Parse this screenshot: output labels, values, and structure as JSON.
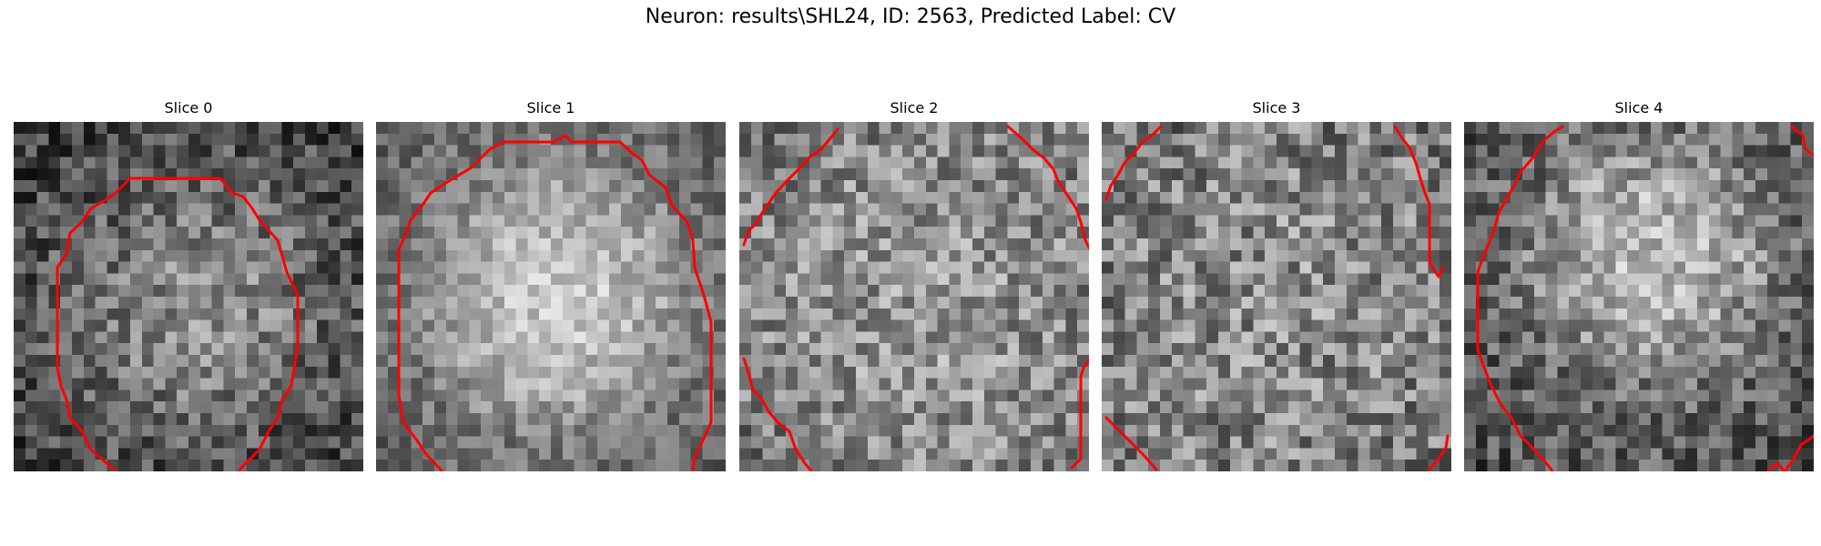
{
  "figure": {
    "title": "Neuron: results\\SHL24, ID: 2563, Predicted Label: CV"
  },
  "panels": [
    {
      "label": "Slice 0",
      "image": "grayscale-microscopy-slice-0",
      "contour_color": "#ff0000"
    },
    {
      "label": "Slice 1",
      "image": "grayscale-microscopy-slice-1",
      "contour_color": "#ff0000"
    },
    {
      "label": "Slice 2",
      "image": "grayscale-microscopy-slice-2",
      "contour_color": "#ff0000"
    },
    {
      "label": "Slice 3",
      "image": "grayscale-microscopy-slice-3",
      "contour_color": "#ff0000"
    },
    {
      "label": "Slice 4",
      "image": "grayscale-microscopy-slice-4",
      "contour_color": "#ff0000"
    }
  ]
}
